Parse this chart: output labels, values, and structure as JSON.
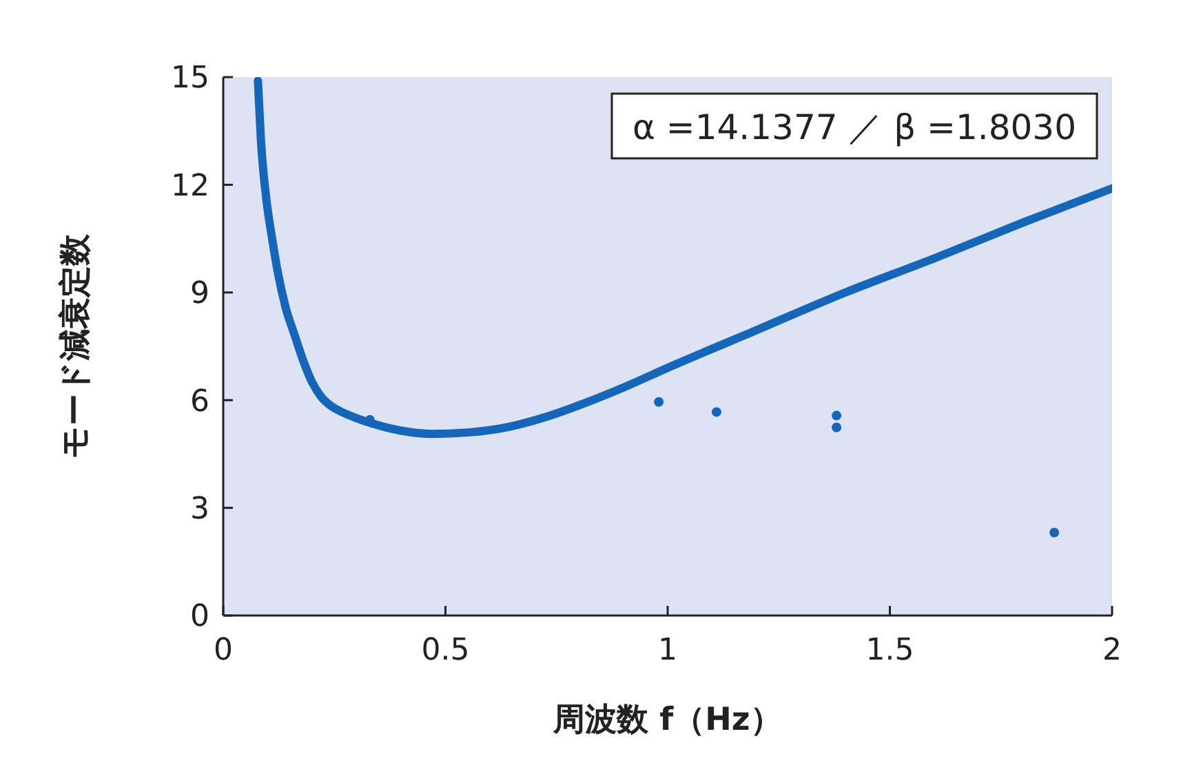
{
  "chart_data": {
    "type": "line",
    "xlabel": "周波数 f（Hz）",
    "ylabel": "モード減衰定数",
    "xlim": [
      0,
      2
    ],
    "ylim": [
      0,
      15
    ],
    "xticks": [
      0,
      0.5,
      1,
      1.5,
      2
    ],
    "yticks": [
      0,
      3,
      6,
      9,
      12,
      15
    ],
    "grid": false,
    "annotations": [
      "α =14.1377 ／ β =1.8030"
    ],
    "series": [
      {
        "color": "#1565b8",
        "x": [
          0.078,
          0.085,
          0.097,
          0.11,
          0.123,
          0.14,
          0.161,
          0.18,
          0.2,
          0.22,
          0.239,
          0.27,
          0.3,
          0.33,
          0.4,
          0.47,
          0.55,
          0.64,
          0.73,
          0.82,
          0.9,
          1.0,
          1.2,
          1.4,
          1.6,
          1.8,
          2.0
        ],
        "values": [
          14.9,
          13.2,
          11.6,
          10.5,
          9.55,
          8.6,
          7.8,
          7.1,
          6.5,
          6.1,
          5.87,
          5.65,
          5.5,
          5.37,
          5.15,
          5.06,
          5.1,
          5.25,
          5.55,
          5.95,
          6.35,
          6.9,
          7.95,
          9.0,
          9.95,
          10.95,
          11.9
        ]
      },
      {
        "type": "scatter",
        "color": "#1565b8",
        "marker": "circle",
        "x": [
          0.33,
          0.98,
          1.11,
          1.38,
          1.38,
          1.87
        ],
        "values": [
          5.45,
          5.95,
          5.67,
          5.57,
          5.24,
          2.31
        ]
      }
    ]
  }
}
